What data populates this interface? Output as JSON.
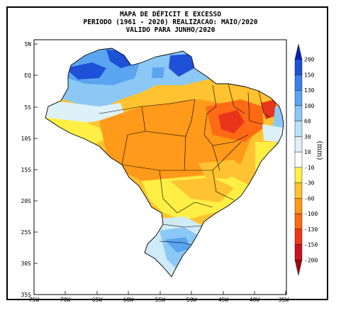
{
  "title": {
    "line1": "MAPA DE DÉFICIT E EXCESSO",
    "line2": "PERIODO (1961 - 2020) REALIZACAO: MAIO/2020",
    "line3": "VALIDO PARA JUNHO/2020"
  },
  "lat_labels": [
    "5N",
    "EQ",
    "5S",
    "10S",
    "15S",
    "20S",
    "25S",
    "30S",
    "35S"
  ],
  "lon_labels": [
    "75W",
    "70W",
    "65W",
    "60W",
    "55W",
    "50W",
    "45W",
    "40W",
    "35W"
  ],
  "colorbar": {
    "unit": "(mm)",
    "labels": [
      "200",
      "150",
      "130",
      "100",
      "60",
      "30",
      "10",
      "-10",
      "-30",
      "-60",
      "-100",
      "-130",
      "-150",
      "-200"
    ],
    "colors": [
      "#0a1fb8",
      "#1e50d8",
      "#3a7ee8",
      "#5aa5f0",
      "#8cc8f5",
      "#b9e3f7",
      "#ddf1f8",
      "#ffffff",
      "#ffef45",
      "#ffc230",
      "#ff9a1a",
      "#ff6a14",
      "#f0341a",
      "#c8141e",
      "#9e0a14"
    ]
  },
  "region_colors": {
    "strong_wet": "#0a1fb8",
    "wet": "#3a7ee8",
    "light_wet": "#8cc8f5",
    "very_light_wet": "#cfeaf8",
    "neutral": "#ffffff",
    "dry1": "#ffef45",
    "dry2": "#ffc230",
    "dry3": "#ff9a1a",
    "dry4": "#ff6a14",
    "dry5": "#e8341a"
  }
}
